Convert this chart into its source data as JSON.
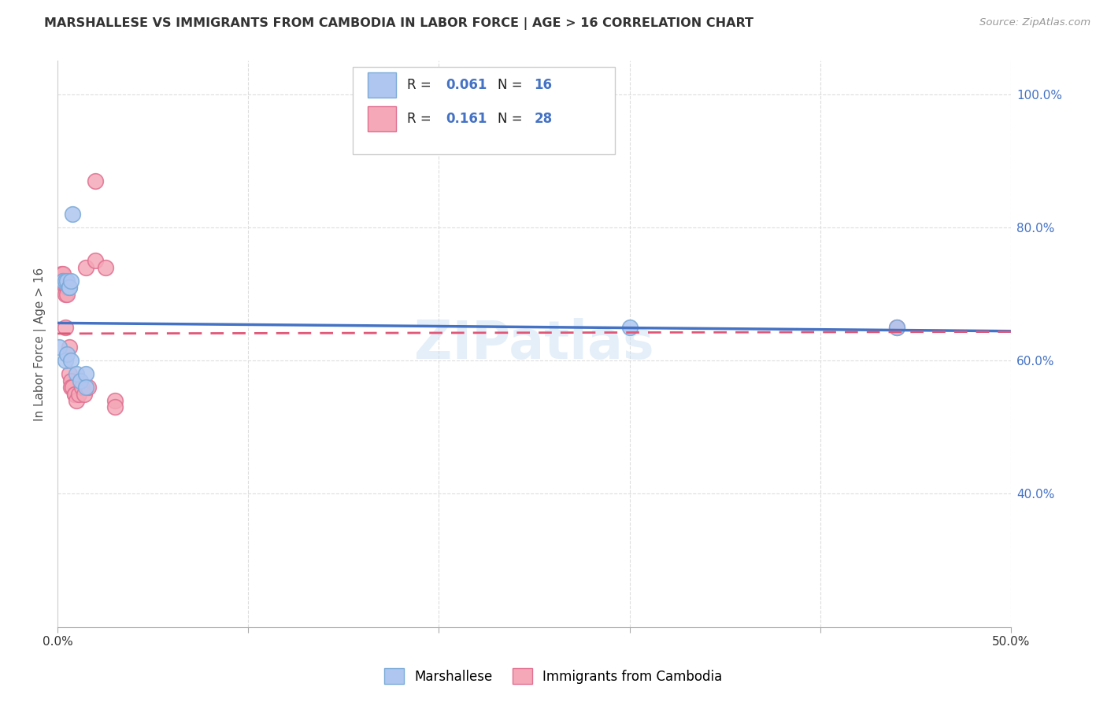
{
  "title": "MARSHALLESE VS IMMIGRANTS FROM CAMBODIA IN LABOR FORCE | AGE > 16 CORRELATION CHART",
  "source": "Source: ZipAtlas.com",
  "ylabel": "In Labor Force | Age > 16",
  "xlim": [
    0.0,
    0.5
  ],
  "ylim": [
    0.2,
    1.05
  ],
  "xticks": [
    0.0,
    0.1,
    0.2,
    0.3,
    0.4,
    0.5
  ],
  "xticklabels": [
    "0.0%",
    "",
    "",
    "",
    "",
    "50.0%"
  ],
  "yticks_right": [
    0.4,
    0.6,
    0.8,
    1.0
  ],
  "ytick_labels_right": [
    "40.0%",
    "60.0%",
    "80.0%",
    "100.0%"
  ],
  "marshallese_x": [
    0.001,
    0.003,
    0.004,
    0.004,
    0.005,
    0.005,
    0.006,
    0.006,
    0.007,
    0.007,
    0.008,
    0.01,
    0.012,
    0.015,
    0.015,
    0.3,
    0.44
  ],
  "marshallese_y": [
    0.62,
    0.72,
    0.72,
    0.6,
    0.72,
    0.61,
    0.71,
    0.71,
    0.72,
    0.6,
    0.82,
    0.58,
    0.57,
    0.58,
    0.56,
    0.65,
    0.65
  ],
  "cambodia_x": [
    0.001,
    0.002,
    0.003,
    0.003,
    0.004,
    0.004,
    0.004,
    0.005,
    0.005,
    0.006,
    0.006,
    0.007,
    0.007,
    0.008,
    0.009,
    0.009,
    0.01,
    0.011,
    0.013,
    0.014,
    0.015,
    0.016,
    0.02,
    0.02,
    0.025,
    0.03,
    0.03,
    0.44
  ],
  "cambodia_y": [
    0.72,
    0.73,
    0.73,
    0.72,
    0.71,
    0.7,
    0.65,
    0.71,
    0.7,
    0.62,
    0.58,
    0.57,
    0.56,
    0.56,
    0.55,
    0.55,
    0.54,
    0.55,
    0.56,
    0.55,
    0.74,
    0.56,
    0.75,
    0.87,
    0.74,
    0.54,
    0.53,
    0.65
  ],
  "marshallese_line_color": "#4472c4",
  "cambodia_line_color": "#e05878",
  "watermark": "ZIPatlas",
  "background_color": "#ffffff",
  "grid_color": "#dddddd",
  "marsh_scatter_color": "#aec6f0",
  "marsh_scatter_edge": "#7baad8",
  "camb_scatter_color": "#f4a8b8",
  "camb_scatter_edge": "#e07090"
}
